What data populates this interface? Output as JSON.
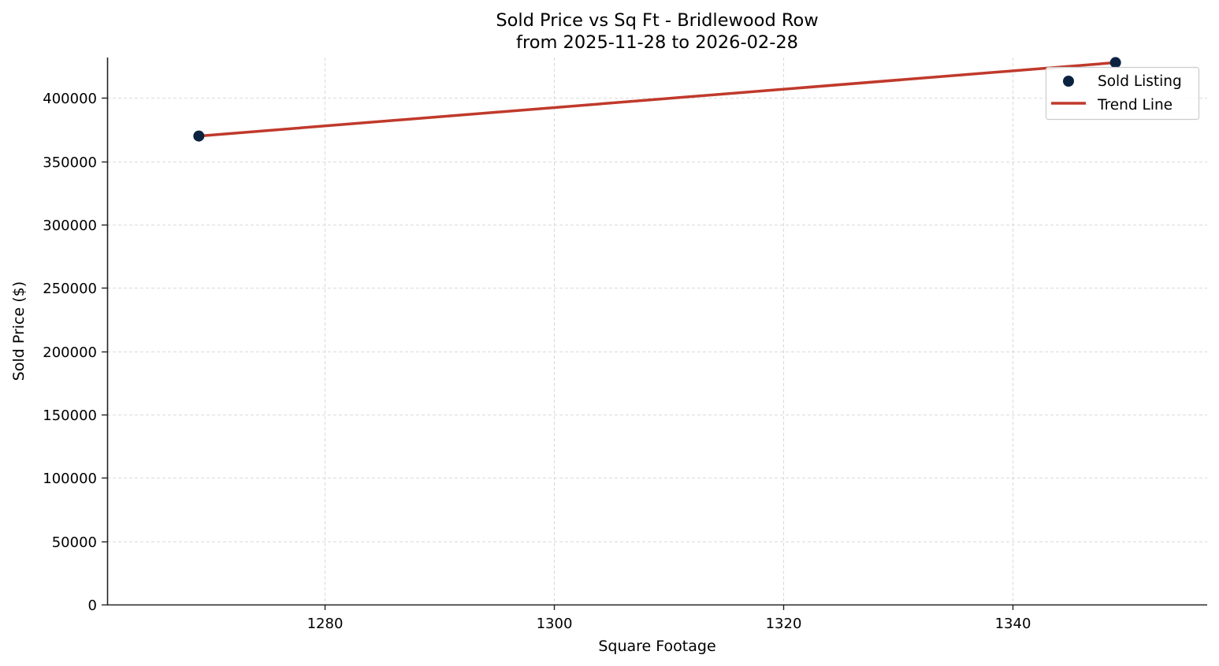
{
  "chart_data": {
    "type": "scatter",
    "title": "Sold Price vs Sq Ft - Bridlewood Row",
    "subtitle": "from 2025-11-28 to 2026-02-28",
    "xlabel": "Square Footage",
    "ylabel": "Sold Price ($)",
    "xlim": [
      1261,
      1357
    ],
    "ylim": [
      0,
      432000
    ],
    "xticks": [
      1280,
      1300,
      1320,
      1340
    ],
    "yticks": [
      0,
      50000,
      100000,
      150000,
      200000,
      250000,
      300000,
      350000,
      400000
    ],
    "grid": true,
    "legend_position": "upper right",
    "series": [
      {
        "name": "Sold Listing",
        "kind": "scatter",
        "color": "#0b2340",
        "points": [
          {
            "x": 1269,
            "y": 370000
          },
          {
            "x": 1349,
            "y": 428000
          }
        ]
      },
      {
        "name": "Trend Line",
        "kind": "line",
        "color": "#c0392b",
        "points": [
          {
            "x": 1269,
            "y": 370000
          },
          {
            "x": 1349,
            "y": 428000
          }
        ]
      }
    ]
  },
  "legend": {
    "items": [
      {
        "label": "Sold Listing",
        "type": "marker"
      },
      {
        "label": "Trend Line",
        "type": "line"
      }
    ]
  }
}
